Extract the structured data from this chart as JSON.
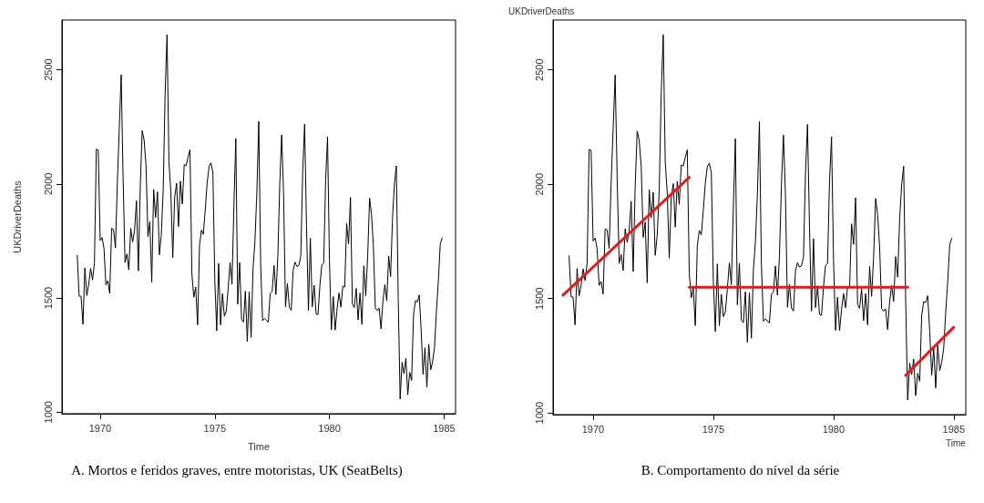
{
  "chart_data": [
    {
      "type": "line",
      "xlabel": "Time",
      "ylabel": "UKDriverDeaths",
      "annotations": [
        "A. Mortos e feridos graves, entre motoristas, UK (SeatBelts)"
      ],
      "grid": false,
      "marker": "none",
      "line_style": "solid",
      "x": [
        "1969-01",
        "1969-02",
        "1969-03",
        "1969-04",
        "1969-05",
        "1969-06",
        "1969-07",
        "1969-08",
        "1969-09",
        "1969-10",
        "1969-11",
        "1969-12",
        "1970-01",
        "1970-02",
        "1970-03",
        "1970-04",
        "1970-05",
        "1970-06",
        "1970-07",
        "1970-08",
        "1970-09",
        "1970-10",
        "1970-11",
        "1970-12",
        "1971-01",
        "1971-02",
        "1971-03",
        "1971-04",
        "1971-05",
        "1971-06",
        "1971-07",
        "1971-08",
        "1971-09",
        "1971-10",
        "1971-11",
        "1971-12",
        "1972-01",
        "1972-02",
        "1972-03",
        "1972-04",
        "1972-05",
        "1972-06",
        "1972-07",
        "1972-08",
        "1972-09",
        "1972-10",
        "1972-11",
        "1972-12",
        "1973-01",
        "1973-02",
        "1973-03",
        "1973-04",
        "1973-05",
        "1973-06",
        "1973-07",
        "1973-08",
        "1973-09",
        "1973-10",
        "1973-11",
        "1973-12",
        "1974-01",
        "1974-02",
        "1974-03",
        "1974-04",
        "1974-05",
        "1974-06",
        "1974-07",
        "1974-08",
        "1974-09",
        "1974-10",
        "1974-11",
        "1974-12",
        "1975-01",
        "1975-02",
        "1975-03",
        "1975-04",
        "1975-05",
        "1975-06",
        "1975-07",
        "1975-08",
        "1975-09",
        "1975-10",
        "1975-11",
        "1975-12",
        "1976-01",
        "1976-02",
        "1976-03",
        "1976-04",
        "1976-05",
        "1976-06",
        "1976-07",
        "1976-08",
        "1976-09",
        "1976-10",
        "1976-11",
        "1976-12",
        "1977-01",
        "1977-02",
        "1977-03",
        "1977-04",
        "1977-05",
        "1977-06",
        "1977-07",
        "1977-08",
        "1977-09",
        "1977-10",
        "1977-11",
        "1977-12",
        "1978-01",
        "1978-02",
        "1978-03",
        "1978-04",
        "1978-05",
        "1978-06",
        "1978-07",
        "1978-08",
        "1978-09",
        "1978-10",
        "1978-11",
        "1978-12",
        "1979-01",
        "1979-02",
        "1979-03",
        "1979-04",
        "1979-05",
        "1979-06",
        "1979-07",
        "1979-08",
        "1979-09",
        "1979-10",
        "1979-11",
        "1979-12",
        "1980-01",
        "1980-02",
        "1980-03",
        "1980-04",
        "1980-05",
        "1980-06",
        "1980-07",
        "1980-08",
        "1980-09",
        "1980-10",
        "1980-11",
        "1980-12",
        "1981-01",
        "1981-02",
        "1981-03",
        "1981-04",
        "1981-05",
        "1981-06",
        "1981-07",
        "1981-08",
        "1981-09",
        "1981-10",
        "1981-11",
        "1981-12",
        "1982-01",
        "1982-02",
        "1982-03",
        "1982-04",
        "1982-05",
        "1982-06",
        "1982-07",
        "1982-08",
        "1982-09",
        "1982-10",
        "1982-11",
        "1982-12",
        "1983-01",
        "1983-02",
        "1983-03",
        "1983-04",
        "1983-05",
        "1983-06",
        "1983-07",
        "1983-08",
        "1983-09",
        "1983-10",
        "1983-11",
        "1983-12",
        "1984-01",
        "1984-02",
        "1984-03",
        "1984-04",
        "1984-05",
        "1984-06",
        "1984-07",
        "1984-08",
        "1984-09",
        "1984-10",
        "1984-11",
        "1984-12"
      ],
      "xlim": [
        "1968-05",
        "1985-07"
      ],
      "xticks": [
        "1970",
        "1975",
        "1980",
        "1985"
      ],
      "ylim": [
        993,
        2718
      ],
      "yticks": [
        1000,
        1500,
        2000,
        2500
      ],
      "series": [
        {
          "color": "#000000",
          "values": [
            1687,
            1508,
            1507,
            1385,
            1632,
            1511,
            1559,
            1630,
            1579,
            1653,
            2152,
            2148,
            1752,
            1765,
            1717,
            1558,
            1575,
            1520,
            1805,
            1800,
            1719,
            2008,
            2242,
            2478,
            2030,
            1655,
            1693,
            1623,
            1805,
            1746,
            1795,
            1926,
            1619,
            1992,
            2233,
            2192,
            2080,
            1768,
            1835,
            1569,
            1976,
            1853,
            1965,
            1689,
            1778,
            1976,
            2397,
            2654,
            2097,
            1963,
            1677,
            1941,
            2003,
            1813,
            2012,
            1912,
            2084,
            2080,
            2118,
            2150,
            1608,
            1503,
            1548,
            1382,
            1731,
            1798,
            1779,
            1887,
            2004,
            2077,
            2092,
            2051,
            1577,
            1356,
            1652,
            1382,
            1519,
            1421,
            1442,
            1543,
            1656,
            1561,
            1905,
            2199,
            1473,
            1655,
            1407,
            1395,
            1530,
            1309,
            1526,
            1327,
            1627,
            1748,
            1958,
            2274,
            1648,
            1401,
            1411,
            1403,
            1394,
            1520,
            1528,
            1643,
            1515,
            1685,
            2000,
            2215,
            1956,
            1462,
            1563,
            1459,
            1446,
            1622,
            1657,
            1638,
            1643,
            1683,
            2050,
            2262,
            1813,
            1445,
            1762,
            1461,
            1556,
            1431,
            1427,
            1554,
            1645,
            1653,
            2016,
            2207,
            1665,
            1361,
            1506,
            1360,
            1453,
            1522,
            1460,
            1552,
            1548,
            1827,
            1737,
            1941,
            1474,
            1458,
            1542,
            1404,
            1522,
            1385,
            1641,
            1510,
            1681,
            1938,
            1868,
            1726,
            1456,
            1445,
            1456,
            1365,
            1487,
            1558,
            1488,
            1684,
            1594,
            1850,
            1998,
            2079,
            1494,
            1057,
            1218,
            1168,
            1236,
            1076,
            1174,
            1139,
            1427,
            1487,
            1483,
            1513,
            1357,
            1165,
            1282,
            1110,
            1297,
            1185,
            1222,
            1284,
            1444,
            1575,
            1737,
            1763
          ]
        }
      ]
    },
    {
      "type": "line",
      "title": "UKDriverDeaths",
      "xlabel": "Time",
      "annotations": [
        "B. Comportamento do nível da série"
      ],
      "grid": false,
      "marker": "none",
      "line_style": "solid",
      "x": [
        "1969-01",
        "1969-02",
        "1969-03",
        "1969-04",
        "1969-05",
        "1969-06",
        "1969-07",
        "1969-08",
        "1969-09",
        "1969-10",
        "1969-11",
        "1969-12",
        "1970-01",
        "1970-02",
        "1970-03",
        "1970-04",
        "1970-05",
        "1970-06",
        "1970-07",
        "1970-08",
        "1970-09",
        "1970-10",
        "1970-11",
        "1970-12",
        "1971-01",
        "1971-02",
        "1971-03",
        "1971-04",
        "1971-05",
        "1971-06",
        "1971-07",
        "1971-08",
        "1971-09",
        "1971-10",
        "1971-11",
        "1971-12",
        "1972-01",
        "1972-02",
        "1972-03",
        "1972-04",
        "1972-05",
        "1972-06",
        "1972-07",
        "1972-08",
        "1972-09",
        "1972-10",
        "1972-11",
        "1972-12",
        "1973-01",
        "1973-02",
        "1973-03",
        "1973-04",
        "1973-05",
        "1973-06",
        "1973-07",
        "1973-08",
        "1973-09",
        "1973-10",
        "1973-11",
        "1973-12",
        "1974-01",
        "1974-02",
        "1974-03",
        "1974-04",
        "1974-05",
        "1974-06",
        "1974-07",
        "1974-08",
        "1974-09",
        "1974-10",
        "1974-11",
        "1974-12",
        "1975-01",
        "1975-02",
        "1975-03",
        "1975-04",
        "1975-05",
        "1975-06",
        "1975-07",
        "1975-08",
        "1975-09",
        "1975-10",
        "1975-11",
        "1975-12",
        "1976-01",
        "1976-02",
        "1976-03",
        "1976-04",
        "1976-05",
        "1976-06",
        "1976-07",
        "1976-08",
        "1976-09",
        "1976-10",
        "1976-11",
        "1976-12",
        "1977-01",
        "1977-02",
        "1977-03",
        "1977-04",
        "1977-05",
        "1977-06",
        "1977-07",
        "1977-08",
        "1977-09",
        "1977-10",
        "1977-11",
        "1977-12",
        "1978-01",
        "1978-02",
        "1978-03",
        "1978-04",
        "1978-05",
        "1978-06",
        "1978-07",
        "1978-08",
        "1978-09",
        "1978-10",
        "1978-11",
        "1978-12",
        "1979-01",
        "1979-02",
        "1979-03",
        "1979-04",
        "1979-05",
        "1979-06",
        "1979-07",
        "1979-08",
        "1979-09",
        "1979-10",
        "1979-11",
        "1979-12",
        "1980-01",
        "1980-02",
        "1980-03",
        "1980-04",
        "1980-05",
        "1980-06",
        "1980-07",
        "1980-08",
        "1980-09",
        "1980-10",
        "1980-11",
        "1980-12",
        "1981-01",
        "1981-02",
        "1981-03",
        "1981-04",
        "1981-05",
        "1981-06",
        "1981-07",
        "1981-08",
        "1981-09",
        "1981-10",
        "1981-11",
        "1981-12",
        "1982-01",
        "1982-02",
        "1982-03",
        "1982-04",
        "1982-05",
        "1982-06",
        "1982-07",
        "1982-08",
        "1982-09",
        "1982-10",
        "1982-11",
        "1982-12",
        "1983-01",
        "1983-02",
        "1983-03",
        "1983-04",
        "1983-05",
        "1983-06",
        "1983-07",
        "1983-08",
        "1983-09",
        "1983-10",
        "1983-11",
        "1983-12",
        "1984-01",
        "1984-02",
        "1984-03",
        "1984-04",
        "1984-05",
        "1984-06",
        "1984-07",
        "1984-08",
        "1984-09",
        "1984-10",
        "1984-11",
        "1984-12"
      ],
      "xlim": [
        "1968-05",
        "1985-07"
      ],
      "xticks": [
        "1970",
        "1975",
        "1980",
        "1985"
      ],
      "ylim": [
        993,
        2718
      ],
      "yticks": [
        1000,
        1500,
        2000,
        2500
      ],
      "series": [
        {
          "color": "#000000",
          "values": [
            1687,
            1508,
            1507,
            1385,
            1632,
            1511,
            1559,
            1630,
            1579,
            1653,
            2152,
            2148,
            1752,
            1765,
            1717,
            1558,
            1575,
            1520,
            1805,
            1800,
            1719,
            2008,
            2242,
            2478,
            2030,
            1655,
            1693,
            1623,
            1805,
            1746,
            1795,
            1926,
            1619,
            1992,
            2233,
            2192,
            2080,
            1768,
            1835,
            1569,
            1976,
            1853,
            1965,
            1689,
            1778,
            1976,
            2397,
            2654,
            2097,
            1963,
            1677,
            1941,
            2003,
            1813,
            2012,
            1912,
            2084,
            2080,
            2118,
            2150,
            1608,
            1503,
            1548,
            1382,
            1731,
            1798,
            1779,
            1887,
            2004,
            2077,
            2092,
            2051,
            1577,
            1356,
            1652,
            1382,
            1519,
            1421,
            1442,
            1543,
            1656,
            1561,
            1905,
            2199,
            1473,
            1655,
            1407,
            1395,
            1530,
            1309,
            1526,
            1327,
            1627,
            1748,
            1958,
            2274,
            1648,
            1401,
            1411,
            1403,
            1394,
            1520,
            1528,
            1643,
            1515,
            1685,
            2000,
            2215,
            1956,
            1462,
            1563,
            1459,
            1446,
            1622,
            1657,
            1638,
            1643,
            1683,
            2050,
            2262,
            1813,
            1445,
            1762,
            1461,
            1556,
            1431,
            1427,
            1554,
            1645,
            1653,
            2016,
            2207,
            1665,
            1361,
            1506,
            1360,
            1453,
            1522,
            1460,
            1552,
            1548,
            1827,
            1737,
            1941,
            1474,
            1458,
            1542,
            1404,
            1522,
            1385,
            1641,
            1510,
            1681,
            1938,
            1868,
            1726,
            1456,
            1445,
            1456,
            1365,
            1487,
            1558,
            1488,
            1684,
            1594,
            1850,
            1998,
            2079,
            1494,
            1057,
            1218,
            1168,
            1236,
            1076,
            1174,
            1139,
            1427,
            1487,
            1483,
            1513,
            1357,
            1165,
            1282,
            1110,
            1297,
            1185,
            1222,
            1284,
            1444,
            1575,
            1737,
            1763
          ]
        },
        {
          "type": "line",
          "color": "#e41a1c",
          "x": [
            "1968-10",
            "1974-01"
          ],
          "values": [
            1515,
            2030
          ]
        },
        {
          "type": "line",
          "color": "#e41a1c",
          "x": [
            "1974-01",
            "1983-02"
          ],
          "values": [
            1550,
            1550
          ]
        },
        {
          "type": "line",
          "color": "#e41a1c",
          "x": [
            "1983-01",
            "1985-01"
          ],
          "values": [
            1165,
            1375
          ]
        }
      ]
    }
  ]
}
